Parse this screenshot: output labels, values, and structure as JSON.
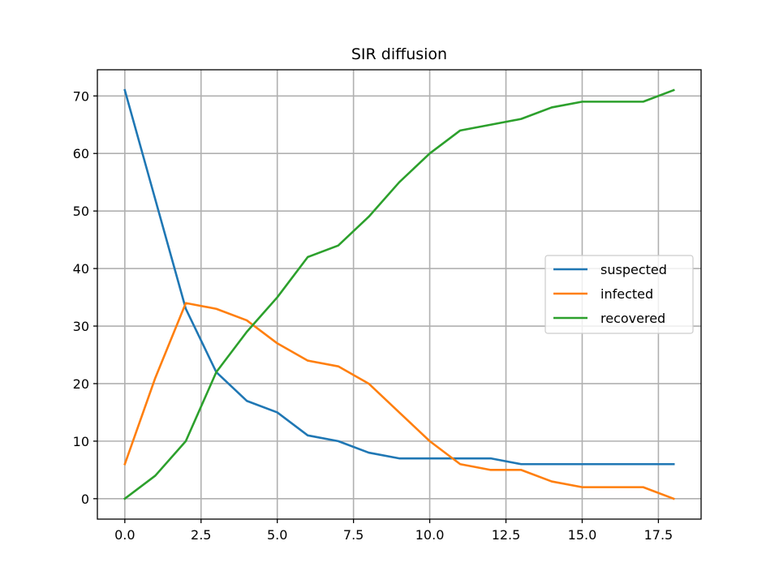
{
  "chart_data": {
    "type": "line",
    "title": "SIR diffusion",
    "xlabel": "",
    "ylabel": "",
    "xlim": [
      -0.9,
      18.9
    ],
    "ylim": [
      -3.55,
      74.55
    ],
    "xticks": [
      0.0,
      2.5,
      5.0,
      7.5,
      10.0,
      12.5,
      15.0,
      17.5
    ],
    "xtick_labels": [
      "0.0",
      "2.5",
      "5.0",
      "7.5",
      "10.0",
      "12.5",
      "15.0",
      "17.5"
    ],
    "yticks": [
      0,
      10,
      20,
      30,
      40,
      50,
      60,
      70
    ],
    "ytick_labels": [
      "0",
      "10",
      "20",
      "30",
      "40",
      "50",
      "60",
      "70"
    ],
    "grid": true,
    "legend_position": "center-right",
    "x": [
      0,
      1,
      2,
      3,
      4,
      5,
      6,
      7,
      8,
      9,
      10,
      11,
      12,
      13,
      14,
      15,
      16,
      17,
      18
    ],
    "series": [
      {
        "name": "suspected",
        "color": "#1f77b4",
        "values": [
          71,
          52,
          33,
          22,
          17,
          15,
          11,
          10,
          8,
          7,
          7,
          7,
          7,
          6,
          6,
          6,
          6,
          6,
          6
        ]
      },
      {
        "name": "infected",
        "color": "#ff7f0e",
        "values": [
          6,
          21,
          34,
          33,
          31,
          27,
          24,
          23,
          20,
          15,
          10,
          6,
          5,
          5,
          3,
          2,
          2,
          2,
          0
        ]
      },
      {
        "name": "recovered",
        "color": "#2ca02c",
        "values": [
          0,
          4,
          10,
          22,
          29,
          35,
          42,
          44,
          49,
          55,
          60,
          64,
          65,
          66,
          68,
          69,
          69,
          69,
          71
        ]
      }
    ]
  }
}
